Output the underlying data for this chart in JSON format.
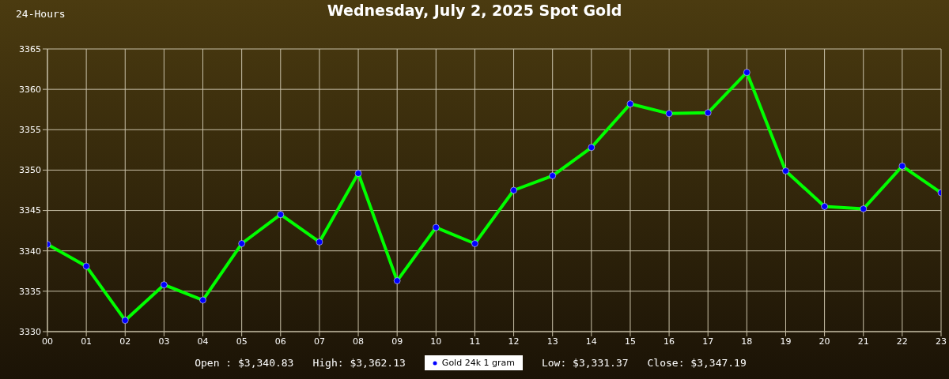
{
  "chart_data": {
    "type": "line",
    "title": "Wednesday, July 2, 2025 Spot Gold",
    "annotations": [
      "24-Hours",
      "Open : $3,340.83",
      "High: $3,362.13",
      "Low: $3,331.37",
      "Close: $3,347.19"
    ],
    "categories": [
      "00",
      "01",
      "02",
      "03",
      "04",
      "05",
      "06",
      "07",
      "08",
      "09",
      "10",
      "11",
      "12",
      "13",
      "14",
      "15",
      "16",
      "17",
      "18",
      "19",
      "20",
      "21",
      "22",
      "23"
    ],
    "series": [
      {
        "name": "Gold 24k 1 gram",
        "color": "#00ff00",
        "values": [
          3340.8,
          3338.1,
          3331.4,
          3335.8,
          3333.9,
          3340.9,
          3344.5,
          3341.1,
          3349.6,
          3336.3,
          3342.9,
          3340.9,
          3347.5,
          3349.3,
          3352.8,
          3358.2,
          3357.0,
          3357.1,
          3362.1,
          3349.9,
          3345.5,
          3345.2,
          3350.5,
          3347.2
        ]
      }
    ],
    "ylim": [
      3330,
      3365
    ],
    "yticks": [
      3330,
      3335,
      3340,
      3345,
      3350,
      3355,
      3360,
      3365
    ],
    "grid": true,
    "legend": "bottom",
    "marker": "circle",
    "line_style": "solid"
  }
}
